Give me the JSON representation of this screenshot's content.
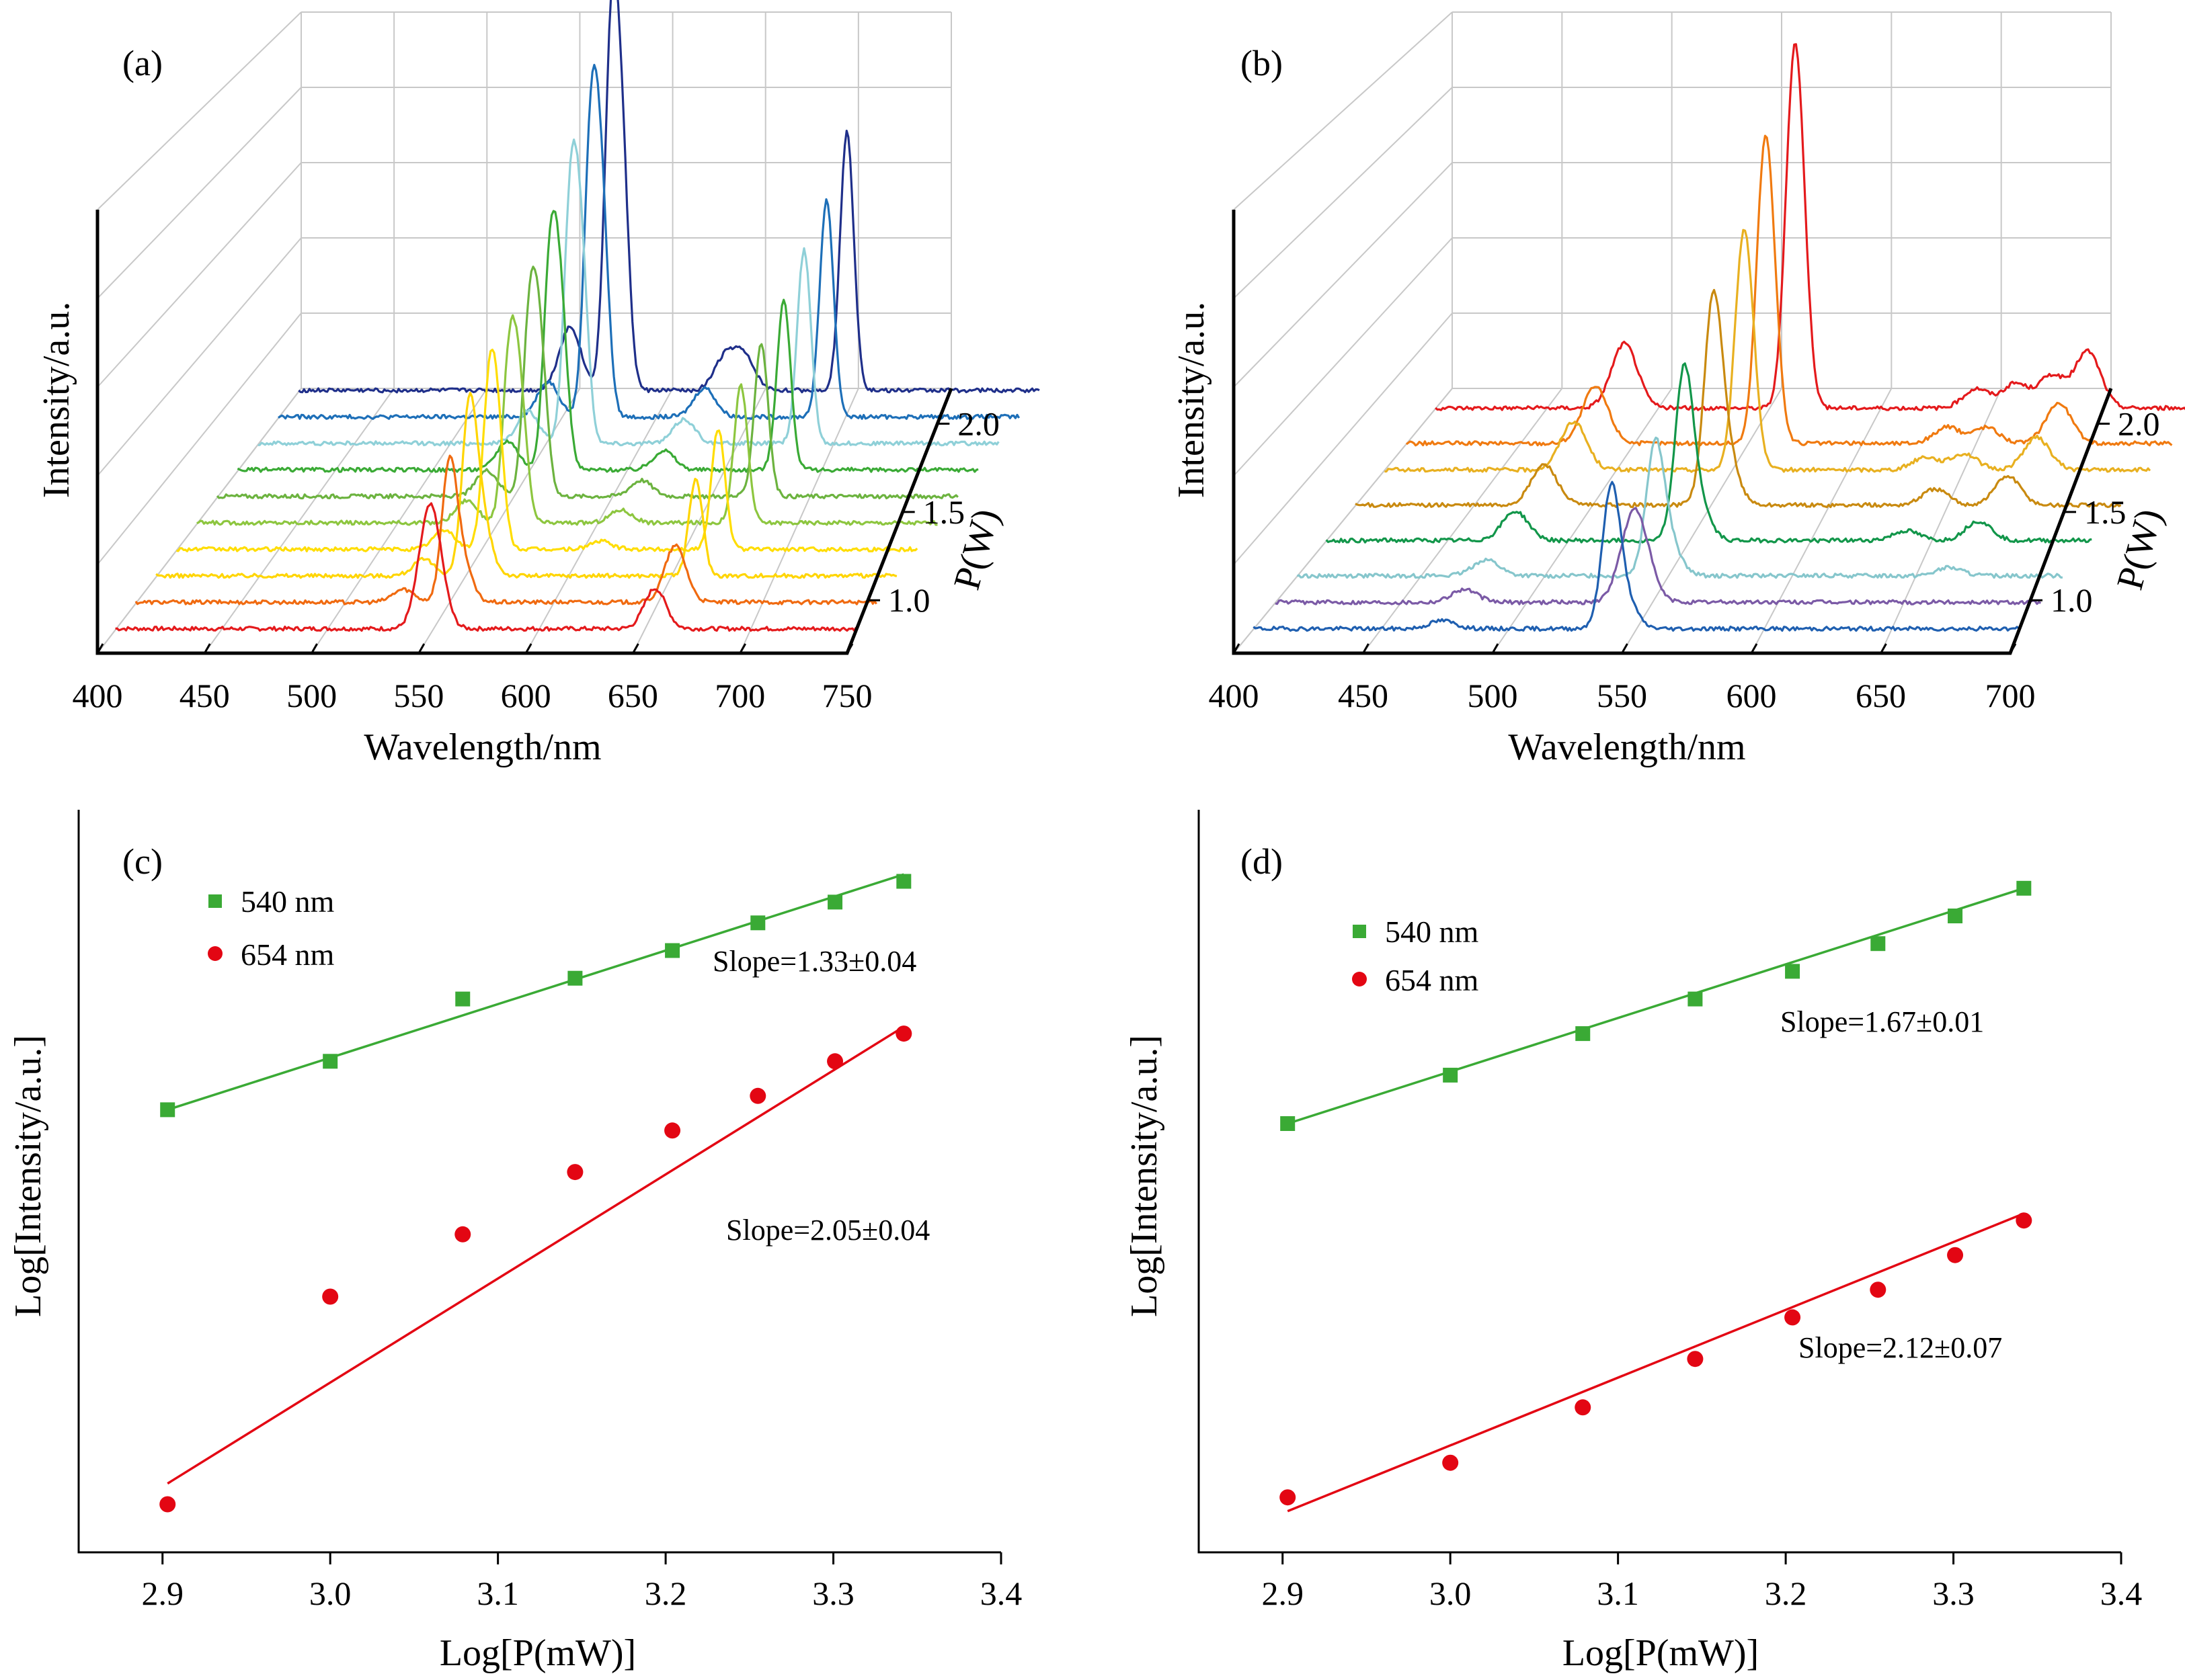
{
  "panels": [
    {
      "label": "(a)",
      "type": "waterfall",
      "xlabel": "Wavelength/nm",
      "ylabel": "Intensity/a.u.",
      "zlabel": "P(W)",
      "x_ticks": [
        "400",
        "450",
        "500",
        "550",
        "600",
        "650",
        "700",
        "750"
      ],
      "z_ticks": [
        "1.0",
        "1.5",
        "2.0"
      ]
    },
    {
      "label": "(b)",
      "type": "waterfall",
      "xlabel": "Wavelength/nm",
      "ylabel": "Intensity/a.u.",
      "zlabel": "P(W)",
      "x_ticks": [
        "400",
        "450",
        "500",
        "550",
        "600",
        "650",
        "700"
      ],
      "z_ticks": [
        "1.0",
        "1.5",
        "2.0"
      ]
    },
    {
      "label": "(c)",
      "type": "scatter",
      "xlabel": "Log[P(mW)]",
      "ylabel": "Log[Intensity/a.u.]",
      "x_ticks": [
        "2.9",
        "3.0",
        "3.1",
        "3.2",
        "3.3",
        "3.4"
      ],
      "legend": [
        "540 nm",
        "654 nm"
      ],
      "annotations": [
        "Slope=1.33±0.04",
        "Slope=2.05±0.04"
      ]
    },
    {
      "label": "(d)",
      "type": "scatter",
      "xlabel": "Log[P(mW)]",
      "ylabel": "Log[Intensity/a.u.]",
      "x_ticks": [
        "2.9",
        "3.0",
        "3.1",
        "3.2",
        "3.3",
        "3.4"
      ],
      "legend": [
        "540 nm",
        "654 nm"
      ],
      "annotations": [
        "Slope=1.67±0.01",
        "Slope=2.12±0.07"
      ]
    }
  ],
  "colors": {
    "green": "#3aaa35",
    "red": "#e30613",
    "a_spectra": [
      "#e41a1c",
      "#f06a10",
      "#ffd500",
      "#ffdd00",
      "#8dc63f",
      "#6cb33f",
      "#3aaa35",
      "#8fd0d8",
      "#1d6fb8",
      "#1f2f8a"
    ],
    "b_spectra": [
      "#1f5fb0",
      "#7b5aa6",
      "#86c6cc",
      "#12964a",
      "#c98a10",
      "#e8b020",
      "#f07a10",
      "#e41a1c"
    ]
  },
  "chart_data": [
    {
      "panel": "(a)",
      "type": "line",
      "xlabel": "Wavelength/nm",
      "ylabel": "Intensity/a.u.",
      "zlabel": "P(W)",
      "xlim": [
        400,
        750
      ],
      "zlim": [
        0.7,
        2.2
      ],
      "series": [
        {
          "power_W": 0.8,
          "peaks": [
            [
              548,
              0.5
            ],
            [
              551,
              0.3
            ],
            [
              654,
              0.25
            ]
          ]
        },
        {
          "power_W": 0.95,
          "peaks": [
            [
              548,
              0.6
            ],
            [
              552,
              0.4
            ],
            [
              654,
              0.35
            ],
            [
              527,
              0.08
            ]
          ]
        },
        {
          "power_W": 1.1,
          "peaks": [
            [
              548,
              0.75
            ],
            [
              552,
              0.5
            ],
            [
              654,
              0.6
            ],
            [
              527,
              0.1
            ]
          ]
        },
        {
          "power_W": 1.25,
          "peaks": [
            [
              548,
              0.9
            ],
            [
              552,
              0.6
            ],
            [
              655,
              0.75
            ],
            [
              527,
              0.12
            ],
            [
              600,
              0.05
            ]
          ]
        },
        {
          "power_W": 1.4,
          "peaks": [
            [
              548,
              1.0
            ],
            [
              553,
              0.7
            ],
            [
              656,
              0.85
            ],
            [
              528,
              0.14
            ],
            [
              600,
              0.08
            ]
          ]
        },
        {
          "power_W": 1.55,
          "peaks": [
            [
              548,
              1.1
            ],
            [
              553,
              0.8
            ],
            [
              656,
              0.95
            ],
            [
              528,
              0.16
            ],
            [
              600,
              0.1
            ]
          ]
        },
        {
          "power_W": 1.7,
          "peaks": [
            [
              548,
              1.25
            ],
            [
              553,
              0.9
            ],
            [
              657,
              1.05
            ],
            [
              528,
              0.18
            ],
            [
              601,
              0.12
            ]
          ]
        },
        {
          "power_W": 1.85,
          "peaks": [
            [
              548,
              1.45
            ],
            [
              553,
              1.05
            ],
            [
              657,
              1.2
            ],
            [
              528,
              0.2
            ],
            [
              601,
              0.15
            ]
          ]
        },
        {
          "power_W": 2.0,
          "peaks": [
            [
              548,
              1.7
            ],
            [
              553,
              1.2
            ],
            [
              658,
              1.35
            ],
            [
              528,
              0.22
            ],
            [
              601,
              0.18
            ]
          ]
        },
        {
          "power_W": 2.15,
          "peaks": [
            [
              548,
              2.1
            ],
            [
              553,
              1.3
            ],
            [
              658,
              1.6
            ],
            [
              528,
              0.25
            ],
            [
              601,
              0.2
            ],
            [
              610,
              0.2
            ],
            [
              530,
              0.15
            ]
          ]
        }
      ]
    },
    {
      "panel": "(b)",
      "type": "line",
      "xlabel": "Wavelength/nm",
      "ylabel": "Intensity/a.u.",
      "zlabel": "P(W)",
      "xlim": [
        400,
        700
      ],
      "zlim": [
        0.7,
        2.2
      ],
      "series": [
        {
          "power_W": 0.8,
          "peaks": [
            [
              540,
              0.65
            ],
            [
              543,
              0.3
            ],
            [
              475,
              0.05
            ]
          ]
        },
        {
          "power_W": 0.95,
          "peaks": [
            [
              540,
              0.4
            ],
            [
              543,
              0.2
            ],
            [
              475,
              0.08
            ]
          ]
        },
        {
          "power_W": 1.1,
          "peaks": [
            [
              540,
              0.55
            ],
            [
              543,
              0.35
            ],
            [
              475,
              0.1
            ],
            [
              654,
              0.05
            ]
          ]
        },
        {
          "power_W": 1.3,
          "peaks": [
            [
              540,
              0.75
            ],
            [
              543,
              0.4
            ],
            [
              475,
              0.18
            ],
            [
              654,
              0.12
            ],
            [
              626,
              0.06
            ]
          ]
        },
        {
          "power_W": 1.5,
          "peaks": [
            [
              540,
              0.9
            ],
            [
              543,
              0.5
            ],
            [
              475,
              0.25
            ],
            [
              654,
              0.18
            ],
            [
              626,
              0.1
            ]
          ]
        },
        {
          "power_W": 1.7,
          "peaks": [
            [
              540,
              1.05
            ],
            [
              543,
              0.6
            ],
            [
              475,
              0.3
            ],
            [
              654,
              0.2
            ],
            [
              626,
              0.1
            ],
            [
              611,
              0.08
            ]
          ]
        },
        {
          "power_W": 1.85,
          "peaks": [
            [
              540,
              1.4
            ],
            [
              543,
              0.7
            ],
            [
              475,
              0.35
            ],
            [
              654,
              0.25
            ],
            [
              626,
              0.1
            ],
            [
              611,
              0.1
            ]
          ]
        },
        {
          "power_W": 2.05,
          "peaks": [
            [
              540,
              1.6
            ],
            [
              543,
              0.9
            ],
            [
              475,
              0.4
            ],
            [
              654,
              0.35
            ],
            [
              626,
              0.15
            ],
            [
              611,
              0.12
            ],
            [
              640,
              0.2
            ]
          ]
        }
      ]
    },
    {
      "panel": "(c)",
      "type": "scatter",
      "xlabel": "Log[P(mW)]",
      "ylabel": "Log[Intensity/a.u.]",
      "xlim": [
        2.85,
        3.4
      ],
      "ylim": [
        0,
        1
      ],
      "series": [
        {
          "name": "540 nm",
          "marker": "square",
          "x": [
            2.903,
            3.0,
            3.079,
            3.146,
            3.204,
            3.255,
            3.301,
            3.342
          ],
          "y": [
            0.62,
            0.69,
            0.78,
            0.81,
            0.85,
            0.89,
            0.92,
            0.95
          ],
          "slope_text": "Slope=1.33±0.04",
          "fit": [
            [
              2.903,
              0.62
            ],
            [
              3.342,
              0.96
            ]
          ]
        },
        {
          "name": "654 nm",
          "marker": "circle",
          "x": [
            2.903,
            3.0,
            3.079,
            3.146,
            3.204,
            3.255,
            3.301,
            3.342
          ],
          "y": [
            0.05,
            0.35,
            0.44,
            0.53,
            0.59,
            0.64,
            0.69,
            0.73
          ],
          "slope_text": "Slope=2.05±0.04",
          "fit": [
            [
              2.903,
              0.08
            ],
            [
              3.342,
              0.74
            ]
          ]
        }
      ]
    },
    {
      "panel": "(d)",
      "type": "scatter",
      "xlabel": "Log[P(mW)]",
      "ylabel": "Log[Intensity/a.u.]",
      "xlim": [
        2.85,
        3.4
      ],
      "ylim": [
        0,
        1
      ],
      "series": [
        {
          "name": "540 nm",
          "marker": "square",
          "x": [
            2.903,
            3.0,
            3.079,
            3.146,
            3.204,
            3.255,
            3.301,
            3.342
          ],
          "y": [
            0.6,
            0.67,
            0.73,
            0.78,
            0.82,
            0.86,
            0.9,
            0.94
          ],
          "slope_text": "Slope=1.67±0.01",
          "fit": [
            [
              2.903,
              0.6
            ],
            [
              3.342,
              0.94
            ]
          ]
        },
        {
          "name": "654 nm",
          "marker": "circle",
          "x": [
            2.903,
            3.0,
            3.079,
            3.146,
            3.204,
            3.255,
            3.301,
            3.342
          ],
          "y": [
            0.06,
            0.11,
            0.19,
            0.26,
            0.32,
            0.36,
            0.41,
            0.46
          ],
          "slope_text": "Slope=2.12±0.07",
          "fit": [
            [
              2.903,
              0.04
            ],
            [
              3.342,
              0.47
            ]
          ]
        }
      ]
    }
  ]
}
